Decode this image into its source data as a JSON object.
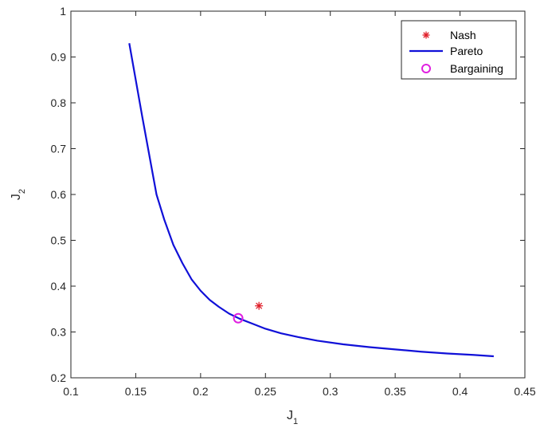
{
  "chart_data": {
    "type": "line",
    "xlabel": "J",
    "xlabel_sub": "1",
    "ylabel": "J",
    "ylabel_sub": "2",
    "xlim": [
      0.1,
      0.45
    ],
    "ylim": [
      0.2,
      1.0
    ],
    "xticks": [
      0.1,
      0.15,
      0.2,
      0.25,
      0.3,
      0.35,
      0.4,
      0.45
    ],
    "yticks": [
      0.2,
      0.3,
      0.4,
      0.5,
      0.6,
      0.7,
      0.8,
      0.9,
      1.0
    ],
    "xtick_labels": [
      "0.1",
      "0.15",
      "0.2",
      "0.25",
      "0.3",
      "0.35",
      "0.4",
      "0.45"
    ],
    "ytick_labels": [
      "0.2",
      "0.3",
      "0.4",
      "0.5",
      "0.6",
      "0.7",
      "0.8",
      "0.9",
      "1"
    ],
    "grid": false,
    "legend_position": "top-right",
    "series": [
      {
        "name": "Nash",
        "kind": "marker",
        "marker": "asterisk",
        "color": "#e0202b",
        "x": [
          0.245
        ],
        "y": [
          0.357
        ]
      },
      {
        "name": "Pareto",
        "kind": "line",
        "color": "#1010d8",
        "x": [
          0.145,
          0.155,
          0.166,
          0.172,
          0.179,
          0.186,
          0.193,
          0.2,
          0.207,
          0.214,
          0.222,
          0.23,
          0.24,
          0.25,
          0.262,
          0.275,
          0.29,
          0.31,
          0.33,
          0.35,
          0.37,
          0.39,
          0.41,
          0.426
        ],
        "y": [
          0.93,
          0.77,
          0.6,
          0.545,
          0.49,
          0.45,
          0.415,
          0.39,
          0.37,
          0.355,
          0.34,
          0.329,
          0.318,
          0.307,
          0.297,
          0.289,
          0.281,
          0.273,
          0.267,
          0.262,
          0.257,
          0.253,
          0.25,
          0.247
        ]
      },
      {
        "name": "Bargaining",
        "kind": "marker",
        "marker": "circle",
        "color": "#e020e0",
        "x": [
          0.229
        ],
        "y": [
          0.33
        ]
      }
    ]
  }
}
